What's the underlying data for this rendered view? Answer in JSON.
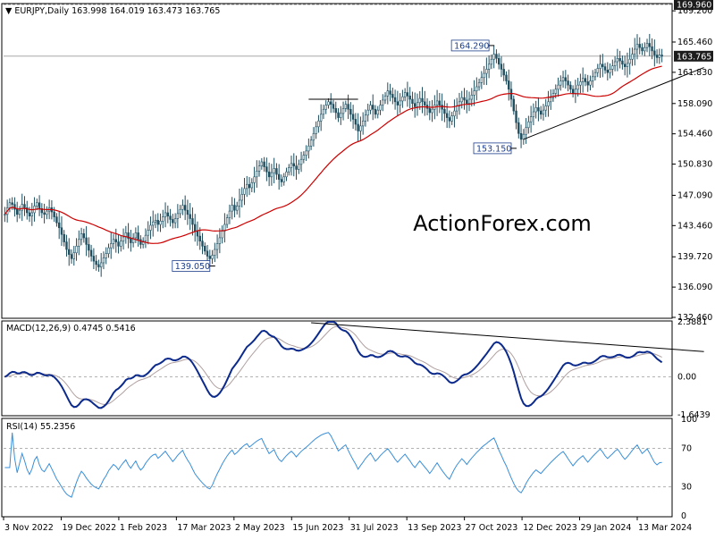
{
  "chart_data": [
    {
      "type": "candlestick",
      "title": "EURJPY,Daily",
      "ohlc_readout": [
        "163.998",
        "164.019",
        "163.473",
        "163.765"
      ],
      "watermark": "ActionForex.com",
      "y_ticks": [
        132.46,
        136.09,
        139.72,
        143.46,
        147.09,
        150.83,
        154.46,
        158.09,
        161.83,
        165.46,
        169.2
      ],
      "y_tick_labels": [
        "132.460",
        "136.090",
        "139.720",
        "143.460",
        "147.090",
        "150.830",
        "154.460",
        "158.090",
        "161.830",
        "165.460",
        "169.200"
      ],
      "ylim": [
        132.46,
        169.96
      ],
      "x_labels": [
        "3 Nov 2022",
        "19 Dec 2022",
        "1 Feb 2023",
        "17 Mar 2023",
        "2 May 2023",
        "15 Jun 2023",
        "31 Jul 2023",
        "13 Sep 2023",
        "27 Oct 2023",
        "12 Dec 2023",
        "29 Jan 2024",
        "13 Mar 2024"
      ],
      "price_labels": [
        {
          "text": "169.960",
          "value": 169.96,
          "style": "dark"
        },
        {
          "text": "163.765",
          "value": 163.765,
          "style": "dark"
        }
      ],
      "annotations": [
        {
          "text": "164.290",
          "value": 164.29
        },
        {
          "text": "153.150",
          "value": 153.15
        },
        {
          "text": "139.050",
          "value": 139.05
        }
      ],
      "closes": [
        144.8,
        145.6,
        146.2,
        146.0,
        145.4,
        144.8,
        145.3,
        146.0,
        145.6,
        145.0,
        144.6,
        145.0,
        145.8,
        146.2,
        145.5,
        145.0,
        144.8,
        145.2,
        145.6,
        145.1,
        144.5,
        143.8,
        143.2,
        142.4,
        141.5,
        140.6,
        140.0,
        139.5,
        140.2,
        141.0,
        141.8,
        142.5,
        142.0,
        141.2,
        140.5,
        139.8,
        139.2,
        138.8,
        138.5,
        139.0,
        139.6,
        140.1,
        140.8,
        141.3,
        141.8,
        141.5,
        141.0,
        141.6,
        142.1,
        142.6,
        141.9,
        141.4,
        142.0,
        142.6,
        141.8,
        141.2,
        141.6,
        142.3,
        142.9,
        143.5,
        143.9,
        144.1,
        143.6,
        144.0,
        144.5,
        145.0,
        144.6,
        144.2,
        143.8,
        144.3,
        144.9,
        145.4,
        145.9,
        145.3,
        144.8,
        144.3,
        143.6,
        142.8,
        142.2,
        141.6,
        141.0,
        140.4,
        139.8,
        139.5,
        139.9,
        140.6,
        141.3,
        142.0,
        142.8,
        143.6,
        144.4,
        145.2,
        145.9,
        145.3,
        145.8,
        146.5,
        147.2,
        147.9,
        148.4,
        148.0,
        148.6,
        149.3,
        150.0,
        150.6,
        151.1,
        150.5,
        149.9,
        149.3,
        149.8,
        150.3,
        149.6,
        149.0,
        148.7,
        149.3,
        149.9,
        150.4,
        150.9,
        150.6,
        150.2,
        150.8,
        151.4,
        151.9,
        152.4,
        153.0,
        153.7,
        154.5,
        155.3,
        156.0,
        156.8,
        157.4,
        157.9,
        158.3,
        158.0,
        157.5,
        157.0,
        156.4,
        156.9,
        157.5,
        158.0,
        157.4,
        156.8,
        156.2,
        155.6,
        154.8,
        155.4,
        156.0,
        156.7,
        157.3,
        157.9,
        157.4,
        156.8,
        157.3,
        157.9,
        158.5,
        159.0,
        159.6,
        159.2,
        158.8,
        158.3,
        157.9,
        158.4,
        158.9,
        159.4,
        159.0,
        158.6,
        158.1,
        157.7,
        158.2,
        158.7,
        158.3,
        157.9,
        157.5,
        157.0,
        157.4,
        157.9,
        158.4,
        157.9,
        157.4,
        156.9,
        156.4,
        156.0,
        156.6,
        157.2,
        157.8,
        158.3,
        158.8,
        158.5,
        158.1,
        158.6,
        159.1,
        159.6,
        160.1,
        160.6,
        161.2,
        161.7,
        162.2,
        162.8,
        163.4,
        164.0,
        163.5,
        162.8,
        162.2,
        161.5,
        160.8,
        159.8,
        158.6,
        157.2,
        155.8,
        154.5,
        153.8,
        154.4,
        155.2,
        155.9,
        156.5,
        157.1,
        157.6,
        157.2,
        156.8,
        157.3,
        157.8,
        158.3,
        158.8,
        159.3,
        159.8,
        160.3,
        160.8,
        161.2,
        160.8,
        160.3,
        159.8,
        159.3,
        159.8,
        160.3,
        160.7,
        161.1,
        160.7,
        160.3,
        160.8,
        161.3,
        161.8,
        162.3,
        162.8,
        162.5,
        162.1,
        161.8,
        162.2,
        162.6,
        163.1,
        163.5,
        163.2,
        162.8,
        162.5,
        162.9,
        163.4,
        164.0,
        164.6,
        165.2,
        164.8,
        164.4,
        164.8,
        165.3,
        164.9,
        164.4,
        163.9,
        163.6,
        163.9,
        163.765
      ],
      "sma_final": 162.4,
      "trendlines": [
        {
          "from": {
            "bar_index": 210,
            "value": 153.8
          },
          "to": {
            "bar_index": 283,
            "value": 162.4
          }
        },
        {
          "from": {
            "bar_index": 123,
            "value": 158.6
          },
          "to": {
            "bar_index": 143,
            "value": 158.6
          }
        }
      ]
    },
    {
      "type": "line",
      "title": "MACD(12,26,9) 0.4745 0.5416",
      "y_ticks": [
        2.3881,
        0.0,
        -1.6439
      ],
      "y_tick_labels": [
        "2.3881",
        "0.00",
        "-1.6439"
      ],
      "ylim": [
        -1.6439,
        2.3881
      ],
      "macd_last": 0.4745,
      "signal_last": 0.5416,
      "trendline": {
        "from": {
          "bar_index": 124,
          "value": 2.35
        },
        "to": {
          "bar_index": 283,
          "value": 1.1
        }
      }
    },
    {
      "type": "line",
      "title": "RSI(14) 55.2356",
      "y_ticks": [
        100,
        70,
        30,
        0
      ],
      "y_tick_labels": [
        "100",
        "70",
        "30",
        "0"
      ],
      "ylim": [
        0,
        100
      ],
      "rsi_last": 55.2356
    }
  ],
  "colors": {
    "candle": "#1f4e5f",
    "sma": "#cc0000",
    "macd": "#0b2a8c",
    "signal": "#b0a0a0",
    "rsi": "#3a8fd8",
    "label_bg": "#1c1c1c",
    "annotation_border": "#1c3d8a",
    "watermark": "#c8c8c8"
  }
}
